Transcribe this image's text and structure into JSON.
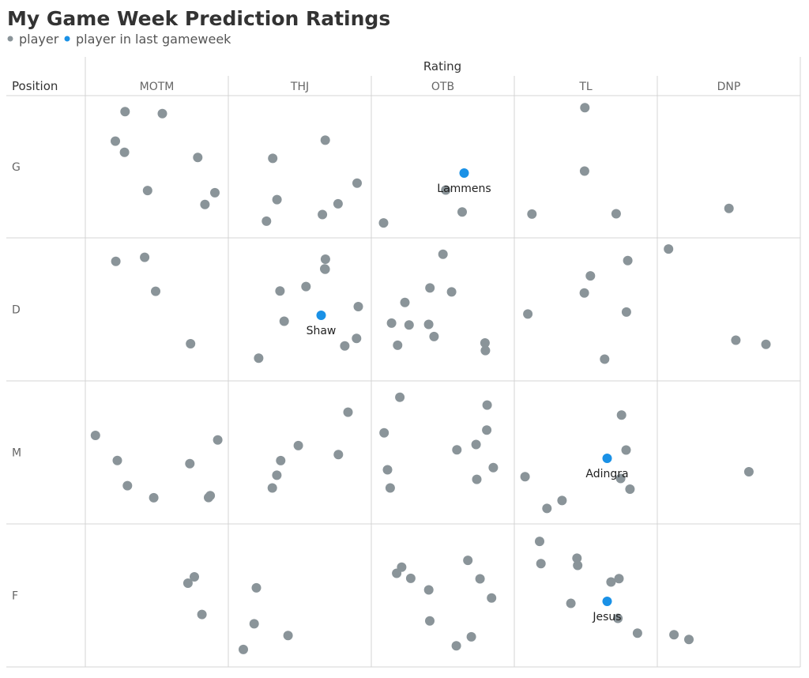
{
  "chart_data": {
    "type": "scatter",
    "title": "My Game Week Prediction Ratings",
    "legend": {
      "placement": "top-left",
      "items": [
        {
          "label": "player",
          "color": "#8a9499"
        },
        {
          "label": "player in last gameweek",
          "color": "#1a91e6"
        }
      ]
    },
    "column_axis_title": "Rating",
    "row_axis_title": "Position",
    "columns": [
      "MOTM",
      "THJ",
      "OTB",
      "TL",
      "DNP"
    ],
    "rows": [
      "G",
      "D",
      "M",
      "F"
    ],
    "colors": {
      "player": "#8a9499",
      "last_gameweek": "#1a91e6",
      "grid": "#d4d4d4"
    },
    "points": [
      {
        "row": "G",
        "col": "MOTM",
        "count": 8
      },
      {
        "row": "G",
        "col": "THJ",
        "count": 7
      },
      {
        "row": "G",
        "col": "OTB",
        "count": 3
      },
      {
        "row": "G",
        "col": "OTB",
        "count": 1,
        "highlight": true,
        "label": "Lammens"
      },
      {
        "row": "G",
        "col": "TL",
        "count": 4
      },
      {
        "row": "G",
        "col": "DNP",
        "count": 1
      },
      {
        "row": "D",
        "col": "MOTM",
        "count": 4
      },
      {
        "row": "D",
        "col": "THJ",
        "count": 10
      },
      {
        "row": "D",
        "col": "THJ",
        "count": 1,
        "highlight": true,
        "label": "Shaw"
      },
      {
        "row": "D",
        "col": "OTB",
        "count": 11
      },
      {
        "row": "D",
        "col": "TL",
        "count": 6
      },
      {
        "row": "D",
        "col": "DNP",
        "count": 3
      },
      {
        "row": "M",
        "col": "MOTM",
        "count": 8
      },
      {
        "row": "M",
        "col": "THJ",
        "count": 6
      },
      {
        "row": "M",
        "col": "OTB",
        "count": 10
      },
      {
        "row": "M",
        "col": "TL",
        "count": 7
      },
      {
        "row": "M",
        "col": "TL",
        "count": 1,
        "highlight": true,
        "label": "Adingra"
      },
      {
        "row": "M",
        "col": "DNP",
        "count": 1
      },
      {
        "row": "F",
        "col": "MOTM",
        "count": 3
      },
      {
        "row": "F",
        "col": "THJ",
        "count": 4
      },
      {
        "row": "F",
        "col": "OTB",
        "count": 10
      },
      {
        "row": "F",
        "col": "TL",
        "count": 9
      },
      {
        "row": "F",
        "col": "TL",
        "count": 1,
        "highlight": true,
        "label": "Jesus"
      },
      {
        "row": "F",
        "col": "DNP",
        "count": 2
      }
    ]
  }
}
